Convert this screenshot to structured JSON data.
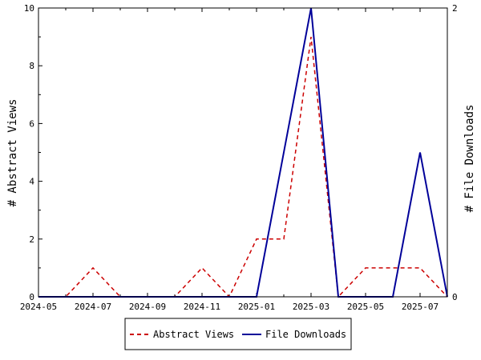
{
  "chart_data": {
    "type": "line",
    "x": [
      "2024-05",
      "2024-06",
      "2024-07",
      "2024-08",
      "2024-09",
      "2024-10",
      "2024-11",
      "2024-12",
      "2025-01",
      "2025-02",
      "2025-03",
      "2025-04",
      "2025-05",
      "2025-06",
      "2025-07",
      "2025-08"
    ],
    "x_tick_labels": [
      "2024-05",
      "2024-07",
      "2024-09",
      "2024-11",
      "2025-01",
      "2025-03",
      "2025-05",
      "2025-07"
    ],
    "ylabel_left": "# Abstract Views",
    "ylabel_right": "# File Downloads",
    "ylim_left": [
      0,
      10
    ],
    "ylim_right": [
      0,
      2
    ],
    "y_ticks_left": [
      "0",
      "2",
      "4",
      "6",
      "8",
      "10"
    ],
    "y_ticks_right": [
      "0",
      "2"
    ],
    "series": [
      {
        "name": "Abstract Views",
        "axis": "left",
        "color": "#cc0000",
        "style": "dashed",
        "values": [
          0,
          0,
          1,
          0,
          0,
          0,
          1,
          0,
          2,
          2,
          9,
          0,
          1,
          1,
          1,
          0
        ]
      },
      {
        "name": "File Downloads",
        "axis": "right",
        "color": "#000099",
        "style": "solid",
        "values": [
          0,
          0,
          0,
          0,
          0,
          0,
          0,
          0,
          0,
          1,
          2,
          0,
          0,
          0,
          1,
          0
        ]
      }
    ],
    "grid": false,
    "legend_position": "bottom"
  }
}
